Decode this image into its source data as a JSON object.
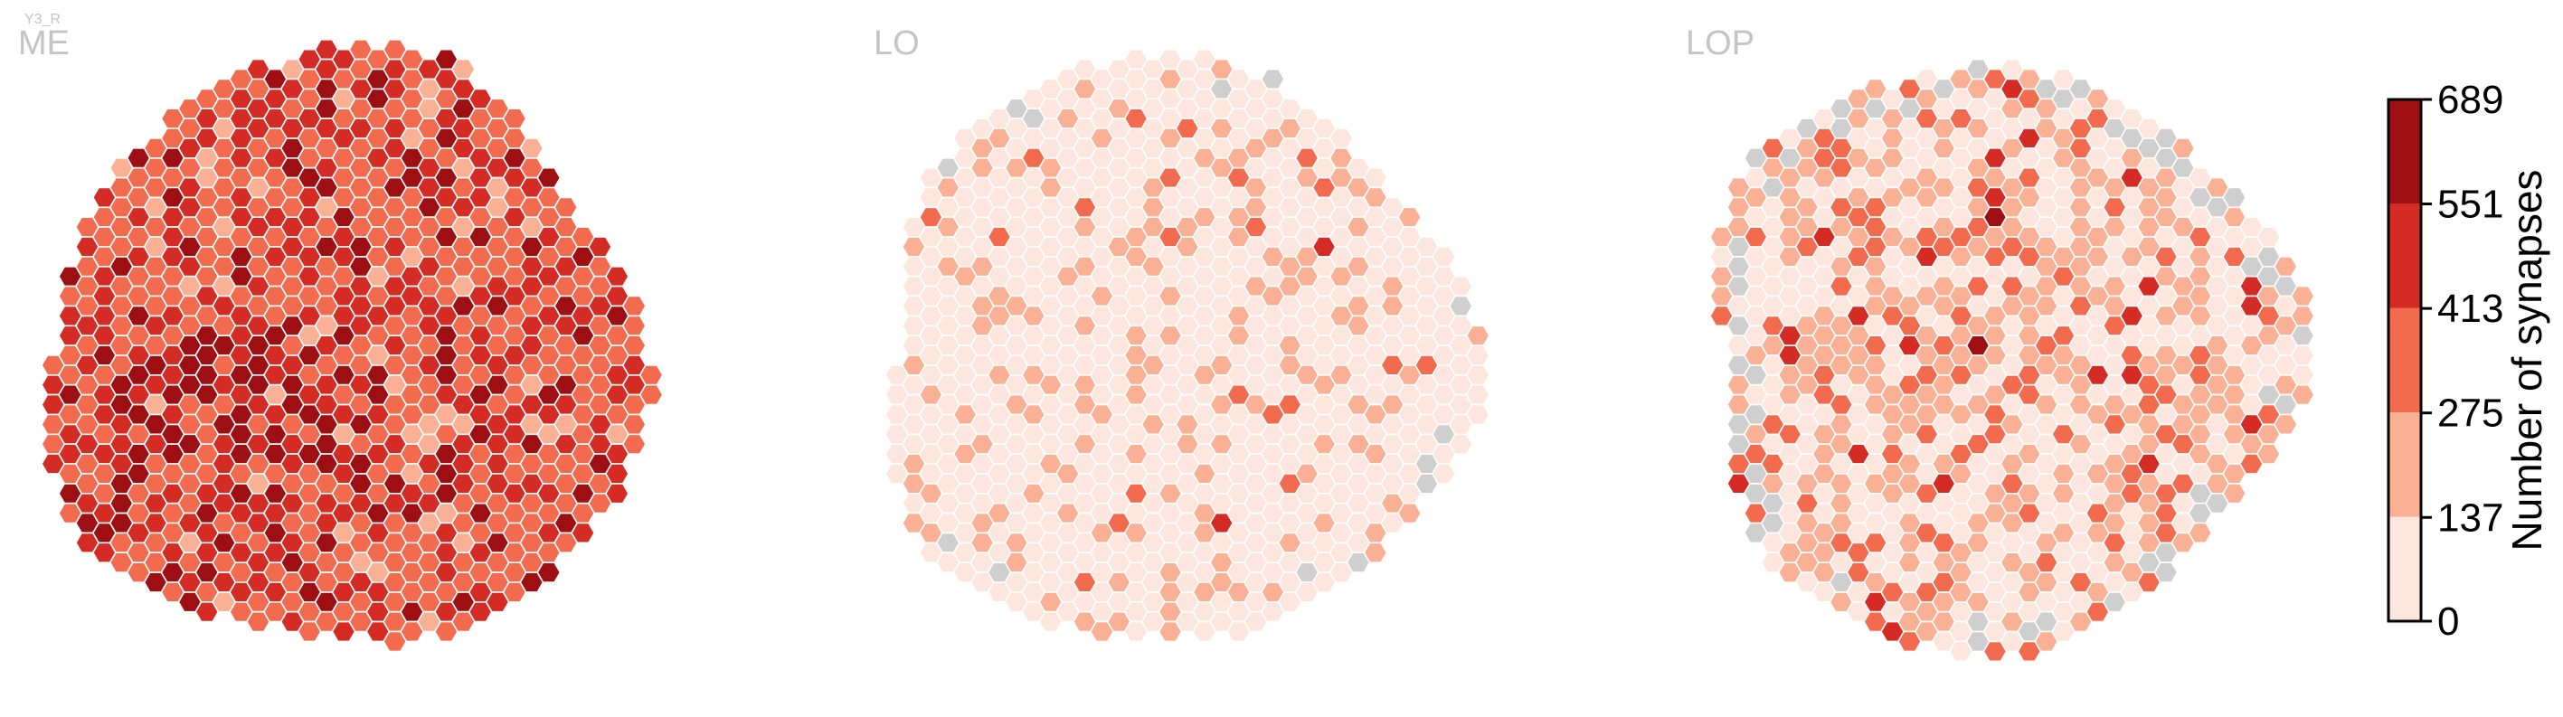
{
  "corner_tag": "Y3_R",
  "panels": [
    {
      "label": "ME",
      "level_weights": [
        0.0,
        0.06,
        0.52,
        0.3,
        0.12
      ],
      "gray_fraction": 0.0,
      "hot_center": [
        -0.35,
        0.25
      ],
      "hot_level_boost": 1.6
    },
    {
      "label": "LO",
      "level_weights": [
        0.8,
        0.17,
        0.025,
        0.005,
        0.0
      ],
      "gray_fraction": 0.02,
      "hot_center": [
        0.0,
        0.2
      ],
      "hot_level_boost": 0.3
    },
    {
      "label": "LOP",
      "level_weights": [
        0.47,
        0.38,
        0.12,
        0.03,
        0.0
      ],
      "gray_fraction": 0.08,
      "hot_center": [
        -0.2,
        0.1
      ],
      "hot_level_boost": 0.5
    }
  ],
  "colors": {
    "levels": [
      "#fde6dd",
      "#f9b095",
      "#f26b4f",
      "#d42c25",
      "#9e0f14"
    ],
    "missing": "#cfcfcf",
    "edge": "#ffffff",
    "panel_label": "#c4c4c4"
  },
  "chart_data": {
    "type": "heatmap",
    "subplot_titles": [
      "ME",
      "LO",
      "LOP"
    ],
    "colorbar": {
      "label": "Number of synapses",
      "min": 0,
      "max": 689,
      "ticks": [
        0,
        137,
        275,
        413,
        551,
        689
      ],
      "bins": 5,
      "colormap": "Reds"
    },
    "missing_value_color": "gray"
  }
}
